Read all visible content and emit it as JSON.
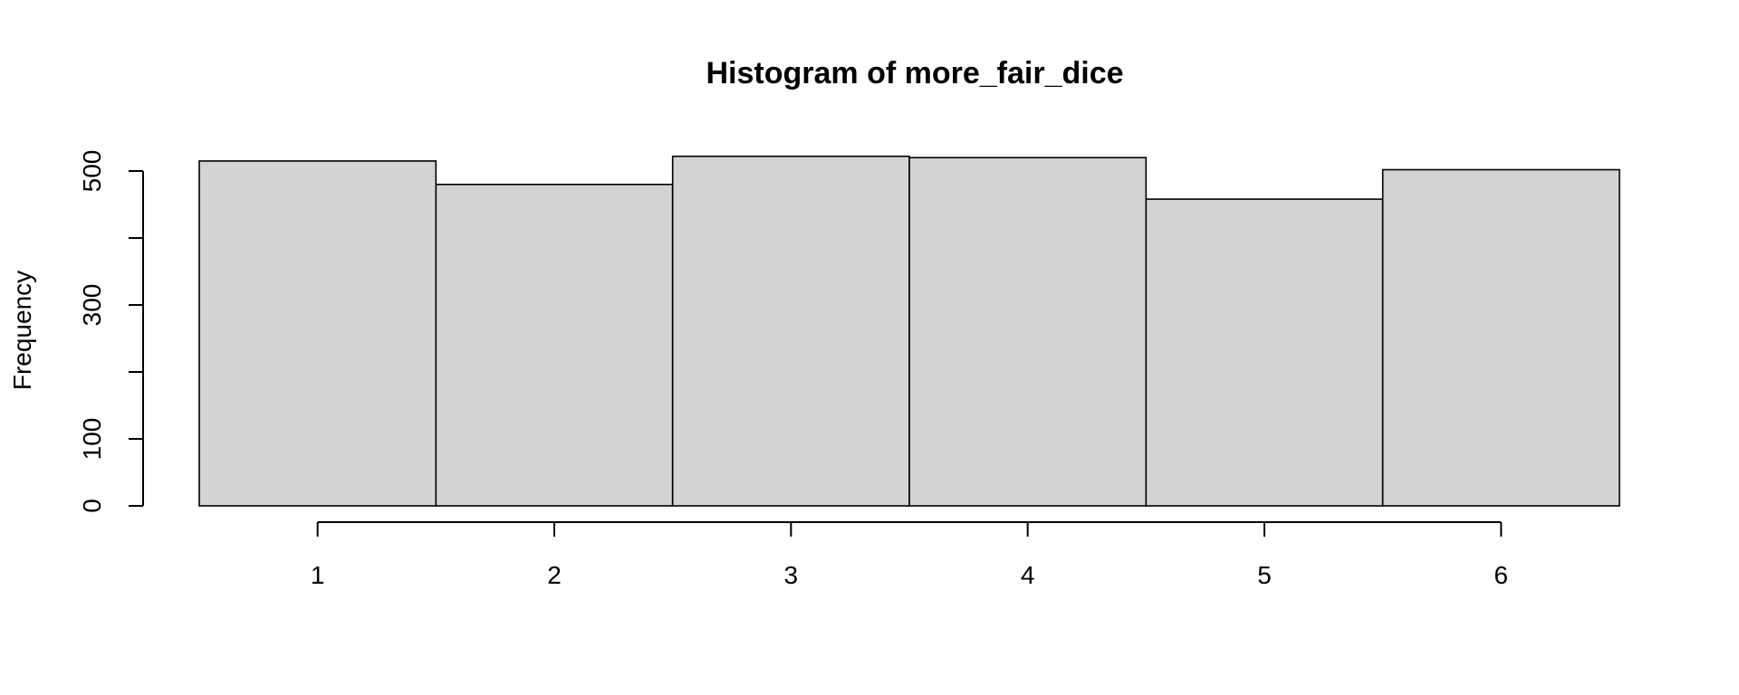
{
  "chart_data": {
    "type": "bar",
    "title": "Histogram of more_fair_dice",
    "xlabel": "",
    "ylabel": "Frequency",
    "categories": [
      "1",
      "2",
      "3",
      "4",
      "5",
      "6"
    ],
    "values": [
      515,
      480,
      522,
      520,
      458,
      502
    ],
    "bins": [
      [
        0.5,
        1.5
      ],
      [
        1.5,
        2.5
      ],
      [
        2.5,
        3.5
      ],
      [
        3.5,
        4.5
      ],
      [
        4.5,
        5.5
      ],
      [
        5.5,
        6.5
      ]
    ],
    "x_ticks": [
      1,
      2,
      3,
      4,
      5,
      6
    ],
    "x_tick_labels": [
      "1",
      "2",
      "3",
      "4",
      "5",
      "6"
    ],
    "y_ticks": [
      0,
      100,
      200,
      300,
      400,
      500
    ],
    "y_tick_labels": [
      "0",
      "100",
      "",
      "300",
      "",
      "500"
    ],
    "xlim": [
      0.5,
      6.5
    ],
    "ylim": [
      0,
      500
    ],
    "grid": false,
    "colors": {
      "bar_fill": "#d3d3d3",
      "bar_stroke": "#000000"
    }
  }
}
